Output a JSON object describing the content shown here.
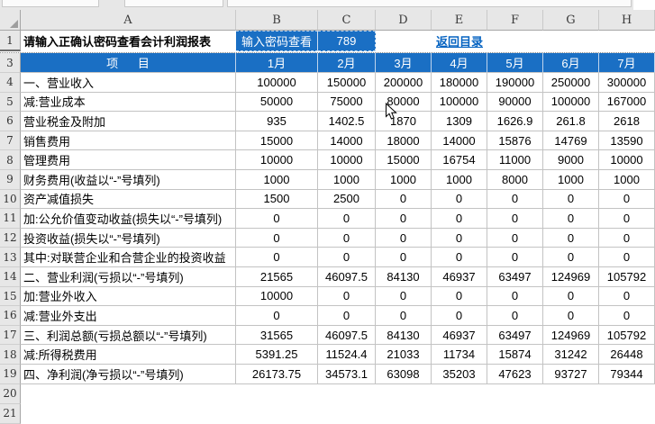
{
  "colors": {
    "header_blue": "#1A6FC4",
    "hyperlink_blue": "#0563C1",
    "gridline": "#C3C3C3"
  },
  "sheet": {
    "columns": [
      "A",
      "B",
      "C",
      "D",
      "E",
      "F",
      "G",
      "H"
    ],
    "row_numbers": [
      "1",
      "3",
      "4",
      "5",
      "6",
      "7",
      "8",
      "9",
      "10",
      "11",
      "12",
      "13",
      "14",
      "15",
      "16",
      "17",
      "18",
      "19"
    ],
    "empty_row_numbers": [
      "20",
      "21"
    ],
    "r1": {
      "a": "请输入正确认密码查看会计利润报表",
      "b": "输入密码查看",
      "c": "789",
      "link": "返回目录"
    },
    "table": {
      "item_header": "项      目",
      "months": [
        "1月",
        "2月",
        "3月",
        "4月",
        "5月",
        "6月",
        "7月"
      ],
      "rows": [
        {
          "label": "一、营业收入",
          "values": [
            "100000",
            "150000",
            "200000",
            "180000",
            "190000",
            "250000",
            "300000"
          ]
        },
        {
          "label": "减:营业成本",
          "values": [
            "50000",
            "75000",
            "80000",
            "100000",
            "90000",
            "100000",
            "167000"
          ]
        },
        {
          "label": "营业税金及附加",
          "values": [
            "935",
            "1402.5",
            "1870",
            "1309",
            "1626.9",
            "261.8",
            "2618"
          ]
        },
        {
          "label": "销售费用",
          "values": [
            "15000",
            "14000",
            "18000",
            "14000",
            "15876",
            "14769",
            "13590"
          ]
        },
        {
          "label": "管理费用",
          "values": [
            "10000",
            "10000",
            "15000",
            "16754",
            "11000",
            "9000",
            "10000"
          ]
        },
        {
          "label": "财务费用(收益以“-”号填列)",
          "values": [
            "1000",
            "1000",
            "1000",
            "1000",
            "8000",
            "1000",
            "1000"
          ]
        },
        {
          "label": "资产减值损失",
          "values": [
            "1500",
            "2500",
            "0",
            "0",
            "0",
            "0",
            "0"
          ]
        },
        {
          "label": "加:公允价值变动收益(损失以“-”号填列)",
          "values": [
            "0",
            "0",
            "0",
            "0",
            "0",
            "0",
            "0"
          ]
        },
        {
          "label": "投资收益(损失以“-”号填列)",
          "values": [
            "0",
            "0",
            "0",
            "0",
            "0",
            "0",
            "0"
          ]
        },
        {
          "label": "其中:对联营企业和合营企业的投资收益",
          "values": [
            "0",
            "0",
            "0",
            "0",
            "0",
            "0",
            "0"
          ]
        },
        {
          "label": "二、营业利润(亏损以“-”号填列)",
          "values": [
            "21565",
            "46097.5",
            "84130",
            "46937",
            "63497",
            "124969",
            "105792"
          ]
        },
        {
          "label": "加:营业外收入",
          "values": [
            "10000",
            "0",
            "0",
            "0",
            "0",
            "0",
            "0"
          ]
        },
        {
          "label": "减:营业外支出",
          "values": [
            "0",
            "0",
            "0",
            "0",
            "0",
            "0",
            "0"
          ]
        },
        {
          "label": "三、利润总额(亏损总额以“-”号填列)",
          "values": [
            "31565",
            "46097.5",
            "84130",
            "46937",
            "63497",
            "124969",
            "105792"
          ]
        },
        {
          "label": "减:所得税费用",
          "values": [
            "5391.25",
            "11524.4",
            "21033",
            "11734",
            "15874",
            "31242",
            "26448"
          ]
        },
        {
          "label": "四、净利润(净亏损以“-”号填列)",
          "values": [
            "26173.75",
            "34573.1",
            "63098",
            "35203",
            "47623",
            "93727",
            "79344"
          ]
        }
      ]
    }
  }
}
